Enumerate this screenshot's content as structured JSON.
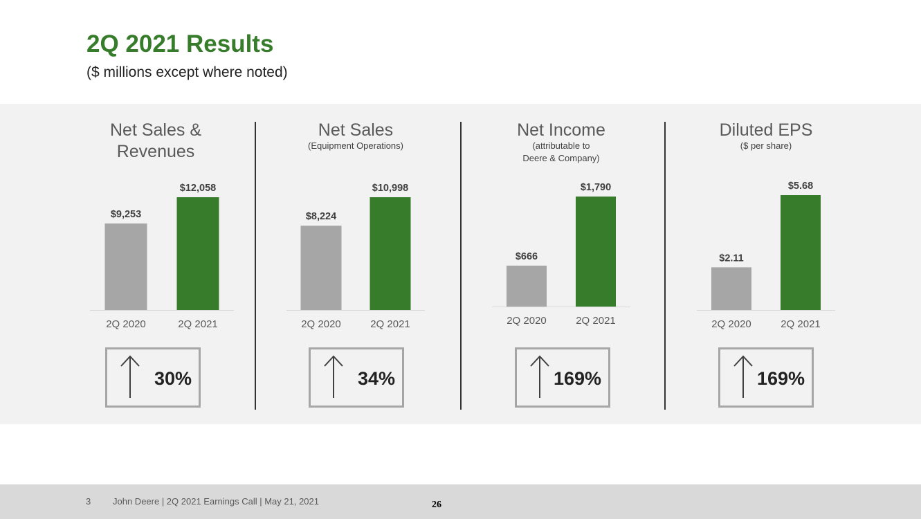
{
  "header": {
    "title": "2Q 2021 Results",
    "subtitle": "($ millions except where noted)"
  },
  "colors": {
    "prior_bar": "#a6a6a6",
    "current_bar": "#367c2b",
    "title": "#367c2b",
    "panel": "#f2f2f2"
  },
  "chart_data": [
    {
      "type": "bar",
      "title": "Net Sales & Revenues",
      "title_lines": [
        "Net Sales &",
        "Revenues"
      ],
      "subtitle_lines": [],
      "categories": [
        "2Q 2020",
        "2Q 2021"
      ],
      "values": [
        9253,
        12058
      ],
      "value_labels": [
        "$9,253",
        "$12,058"
      ],
      "change": {
        "direction": "up",
        "label": "30%"
      }
    },
    {
      "type": "bar",
      "title": "Net Sales",
      "title_lines": [
        "Net Sales"
      ],
      "subtitle_lines": [
        "(Equipment Operations)"
      ],
      "categories": [
        "2Q 2020",
        "2Q 2021"
      ],
      "values": [
        8224,
        10998
      ],
      "value_labels": [
        "$8,224",
        "$10,998"
      ],
      "change": {
        "direction": "up",
        "label": "34%"
      }
    },
    {
      "type": "bar",
      "title": "Net Income",
      "title_lines": [
        "Net Income"
      ],
      "subtitle_lines": [
        "(attributable to",
        "Deere & Company)"
      ],
      "categories": [
        "2Q 2020",
        "2Q 2021"
      ],
      "values": [
        666,
        1790
      ],
      "value_labels": [
        "$666",
        "$1,790"
      ],
      "change": {
        "direction": "up",
        "label": "169%"
      }
    },
    {
      "type": "bar",
      "title": "Diluted EPS",
      "title_lines": [
        "Diluted EPS"
      ],
      "subtitle_lines": [
        "($ per share)"
      ],
      "categories": [
        "2Q 2020",
        "2Q 2021"
      ],
      "values": [
        2.11,
        5.68
      ],
      "value_labels": [
        "$2.11",
        "$5.68"
      ],
      "change": {
        "direction": "up",
        "label": "169%"
      }
    }
  ],
  "footer": {
    "slide_number": "3",
    "text": "John Deere | 2Q 2021 Earnings Call | May 21, 2021",
    "page": "26"
  }
}
